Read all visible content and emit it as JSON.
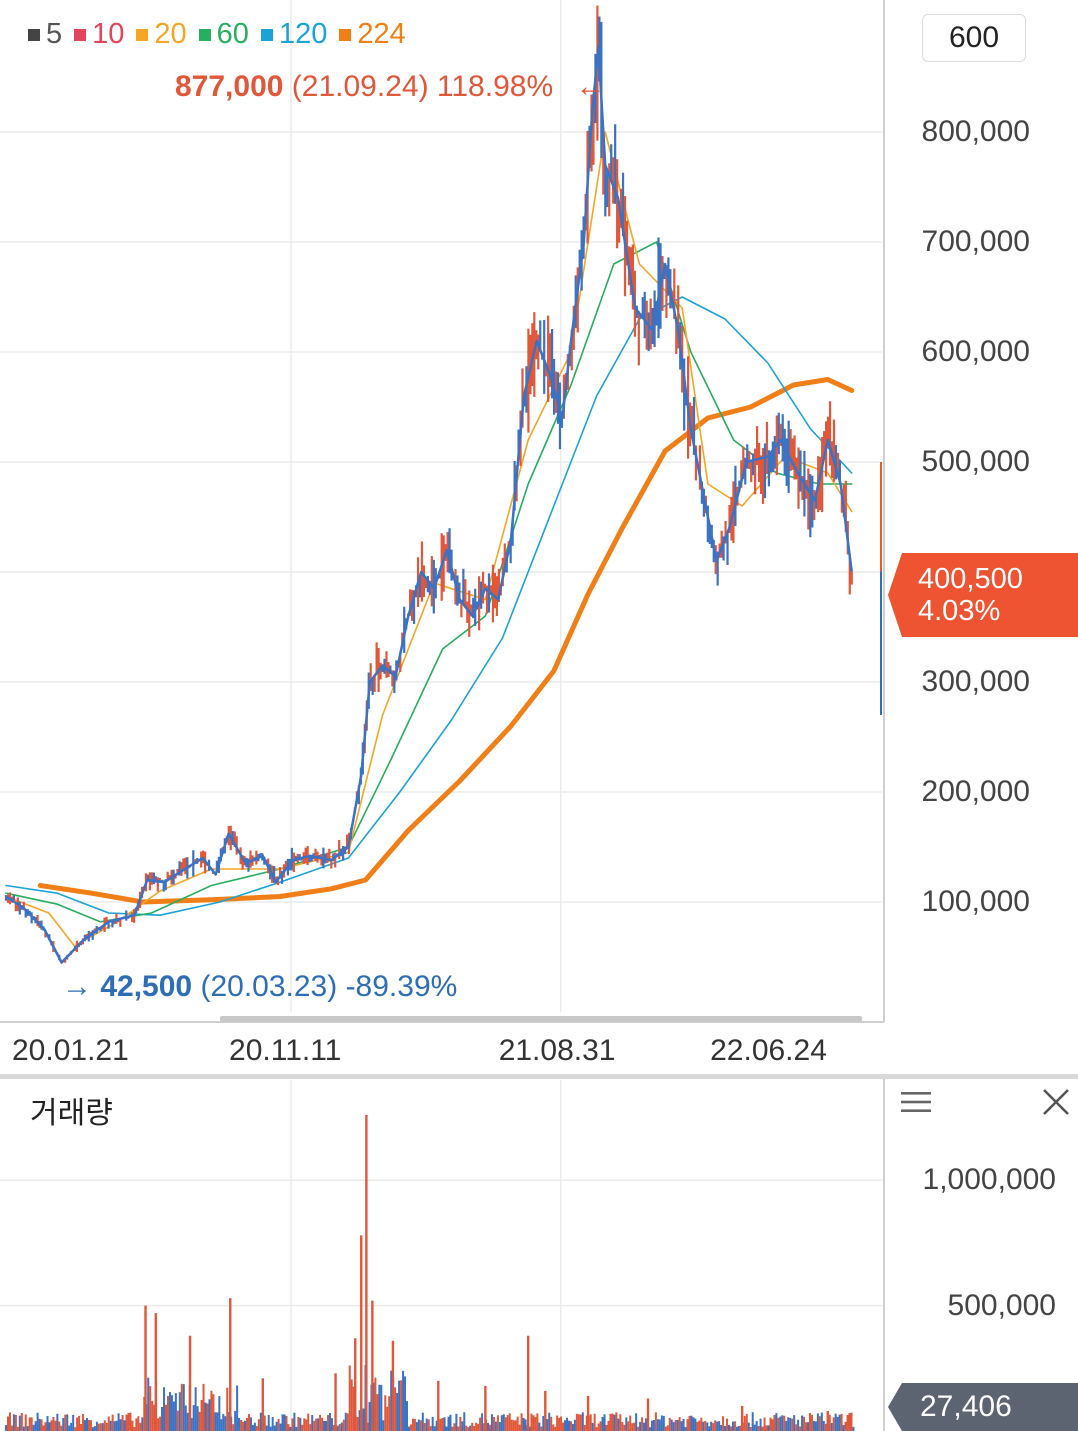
{
  "legend": [
    {
      "label": "5",
      "color": "#444444"
    },
    {
      "label": "10",
      "color": "#e2445c"
    },
    {
      "label": "20",
      "color": "#f5a623"
    },
    {
      "label": "60",
      "color": "#27ae60"
    },
    {
      "label": "120",
      "color": "#1aa3d6"
    },
    {
      "label": "224",
      "color": "#f07f18"
    }
  ],
  "period_button": "600",
  "high_note": {
    "price": "877,000",
    "date": "(21.09.24)",
    "pct": "118.98%",
    "arrow": "←"
  },
  "low_note": {
    "arrow": "→",
    "price": "42,500",
    "date": "(20.03.23)",
    "pct": "-89.39%"
  },
  "current_price": {
    "price": "400,500",
    "pct": "4.03%",
    "color": "#ee5432"
  },
  "volume_panel": {
    "title": "거래량",
    "current_volume": "27,406",
    "menu_icon": "menu-icon",
    "close_icon": "close-icon"
  },
  "colors": {
    "candle_down": "#3a72c4",
    "candle_up": "#e0573a",
    "grid": "#ebebeb"
  },
  "chart_data": [
    {
      "type": "candlestick",
      "title": "",
      "ylim": [
        0,
        920000
      ],
      "y_ticks": [
        100000,
        200000,
        300000,
        400000,
        500000,
        600000,
        700000,
        800000
      ],
      "y_tick_labels": [
        "100,000",
        "200,000",
        "300,000",
        "",
        "500,000",
        "600,000",
        "700,000",
        "800,000"
      ],
      "x_labels": [
        "20.01.21",
        "20.11.11",
        "21.08.31",
        "22.06.24"
      ],
      "x_label_index": [
        0,
        0.333,
        0.648,
        0.895
      ],
      "close_path": [
        [
          0.0,
          105000
        ],
        [
          0.02,
          95000
        ],
        [
          0.045,
          75000
        ],
        [
          0.065,
          45000
        ],
        [
          0.09,
          65000
        ],
        [
          0.12,
          82000
        ],
        [
          0.15,
          88000
        ],
        [
          0.165,
          120000
        ],
        [
          0.185,
          118000
        ],
        [
          0.205,
          128000
        ],
        [
          0.23,
          140000
        ],
        [
          0.245,
          125000
        ],
        [
          0.26,
          162000
        ],
        [
          0.28,
          135000
        ],
        [
          0.3,
          142000
        ],
        [
          0.315,
          118000
        ],
        [
          0.335,
          138000
        ],
        [
          0.355,
          142000
        ],
        [
          0.38,
          138000
        ],
        [
          0.4,
          150000
        ],
        [
          0.415,
          215000
        ],
        [
          0.425,
          300000
        ],
        [
          0.44,
          315000
        ],
        [
          0.455,
          305000
        ],
        [
          0.47,
          360000
        ],
        [
          0.485,
          400000
        ],
        [
          0.5,
          385000
        ],
        [
          0.515,
          420000
        ],
        [
          0.53,
          375000
        ],
        [
          0.545,
          360000
        ],
        [
          0.56,
          385000
        ],
        [
          0.575,
          375000
        ],
        [
          0.59,
          430000
        ],
        [
          0.605,
          560000
        ],
        [
          0.62,
          610000
        ],
        [
          0.635,
          580000
        ],
        [
          0.65,
          540000
        ],
        [
          0.66,
          610000
        ],
        [
          0.675,
          700000
        ],
        [
          0.685,
          820000
        ],
        [
          0.692,
          877000
        ],
        [
          0.7,
          770000
        ],
        [
          0.715,
          740000
        ],
        [
          0.735,
          640000
        ],
        [
          0.755,
          620000
        ],
        [
          0.77,
          680000
        ],
        [
          0.785,
          620000
        ],
        [
          0.8,
          530000
        ],
        [
          0.815,
          470000
        ],
        [
          0.83,
          410000
        ],
        [
          0.845,
          440000
        ],
        [
          0.865,
          500000
        ],
        [
          0.89,
          505000
        ],
        [
          0.905,
          520000
        ],
        [
          0.925,
          490000
        ],
        [
          0.945,
          465000
        ],
        [
          0.96,
          520000
        ],
        [
          0.975,
          480000
        ],
        [
          0.988,
          400500
        ]
      ],
      "series": [
        {
          "name": "224",
          "style": "ma",
          "points": [
            [
              0.04,
              115000
            ],
            [
              0.1,
              108000
            ],
            [
              0.16,
              100000
            ],
            [
              0.24,
              102000
            ],
            [
              0.32,
              105000
            ],
            [
              0.38,
              112000
            ],
            [
              0.42,
              120000
            ],
            [
              0.47,
              165000
            ],
            [
              0.53,
              210000
            ],
            [
              0.59,
              260000
            ],
            [
              0.64,
              310000
            ],
            [
              0.68,
              380000
            ],
            [
              0.72,
              440000
            ],
            [
              0.77,
              510000
            ],
            [
              0.82,
              540000
            ],
            [
              0.87,
              550000
            ],
            [
              0.92,
              570000
            ],
            [
              0.96,
              575000
            ],
            [
              0.988,
              565000
            ]
          ]
        },
        {
          "name": "120",
          "style": "ma",
          "points": [
            [
              0.0,
              115000
            ],
            [
              0.06,
              108000
            ],
            [
              0.12,
              90000
            ],
            [
              0.18,
              88000
            ],
            [
              0.25,
              100000
            ],
            [
              0.32,
              118000
            ],
            [
              0.4,
              140000
            ],
            [
              0.46,
              200000
            ],
            [
              0.52,
              265000
            ],
            [
              0.58,
              340000
            ],
            [
              0.64,
              460000
            ],
            [
              0.69,
              560000
            ],
            [
              0.74,
              630000
            ],
            [
              0.79,
              650000
            ],
            [
              0.84,
              630000
            ],
            [
              0.89,
              590000
            ],
            [
              0.94,
              530000
            ],
            [
              0.988,
              490000
            ]
          ]
        },
        {
          "name": "60",
          "style": "ma",
          "points": [
            [
              0.0,
              108000
            ],
            [
              0.06,
              98000
            ],
            [
              0.11,
              82000
            ],
            [
              0.17,
              90000
            ],
            [
              0.24,
              115000
            ],
            [
              0.32,
              130000
            ],
            [
              0.4,
              150000
            ],
            [
              0.45,
              230000
            ],
            [
              0.51,
              330000
            ],
            [
              0.56,
              360000
            ],
            [
              0.61,
              480000
            ],
            [
              0.66,
              570000
            ],
            [
              0.71,
              680000
            ],
            [
              0.76,
              700000
            ],
            [
              0.8,
              600000
            ],
            [
              0.85,
              520000
            ],
            [
              0.9,
              490000
            ],
            [
              0.95,
              480000
            ],
            [
              0.988,
              480000
            ]
          ]
        },
        {
          "name": "20",
          "style": "ma",
          "points": [
            [
              0.0,
              105000
            ],
            [
              0.05,
              90000
            ],
            [
              0.08,
              60000
            ],
            [
              0.13,
              82000
            ],
            [
              0.18,
              110000
            ],
            [
              0.24,
              130000
            ],
            [
              0.32,
              130000
            ],
            [
              0.4,
              145000
            ],
            [
              0.44,
              270000
            ],
            [
              0.5,
              390000
            ],
            [
              0.56,
              375000
            ],
            [
              0.61,
              520000
            ],
            [
              0.66,
              600000
            ],
            [
              0.7,
              800000
            ],
            [
              0.74,
              680000
            ],
            [
              0.79,
              640000
            ],
            [
              0.82,
              480000
            ],
            [
              0.86,
              460000
            ],
            [
              0.91,
              505000
            ],
            [
              0.96,
              490000
            ],
            [
              0.988,
              455000
            ]
          ]
        }
      ]
    },
    {
      "type": "bar",
      "title": "거래량",
      "ylim": [
        0,
        1280000
      ],
      "y_ticks": [
        500000,
        1000000
      ],
      "y_tick_labels": [
        "500,000",
        "1,000,000"
      ],
      "spikes": [
        [
          0.163,
          500000
        ],
        [
          0.175,
          470000
        ],
        [
          0.215,
          380000
        ],
        [
          0.262,
          530000
        ],
        [
          0.3,
          210000
        ],
        [
          0.385,
          230000
        ],
        [
          0.408,
          370000
        ],
        [
          0.415,
          780000
        ],
        [
          0.421,
          1260000
        ],
        [
          0.428,
          520000
        ],
        [
          0.452,
          360000
        ],
        [
          0.505,
          200000
        ],
        [
          0.56,
          180000
        ],
        [
          0.61,
          380000
        ],
        [
          0.63,
          160000
        ],
        [
          0.68,
          140000
        ],
        [
          0.75,
          130000
        ],
        [
          0.86,
          100000
        ],
        [
          0.96,
          80000
        ]
      ],
      "last_value": 27406
    }
  ]
}
